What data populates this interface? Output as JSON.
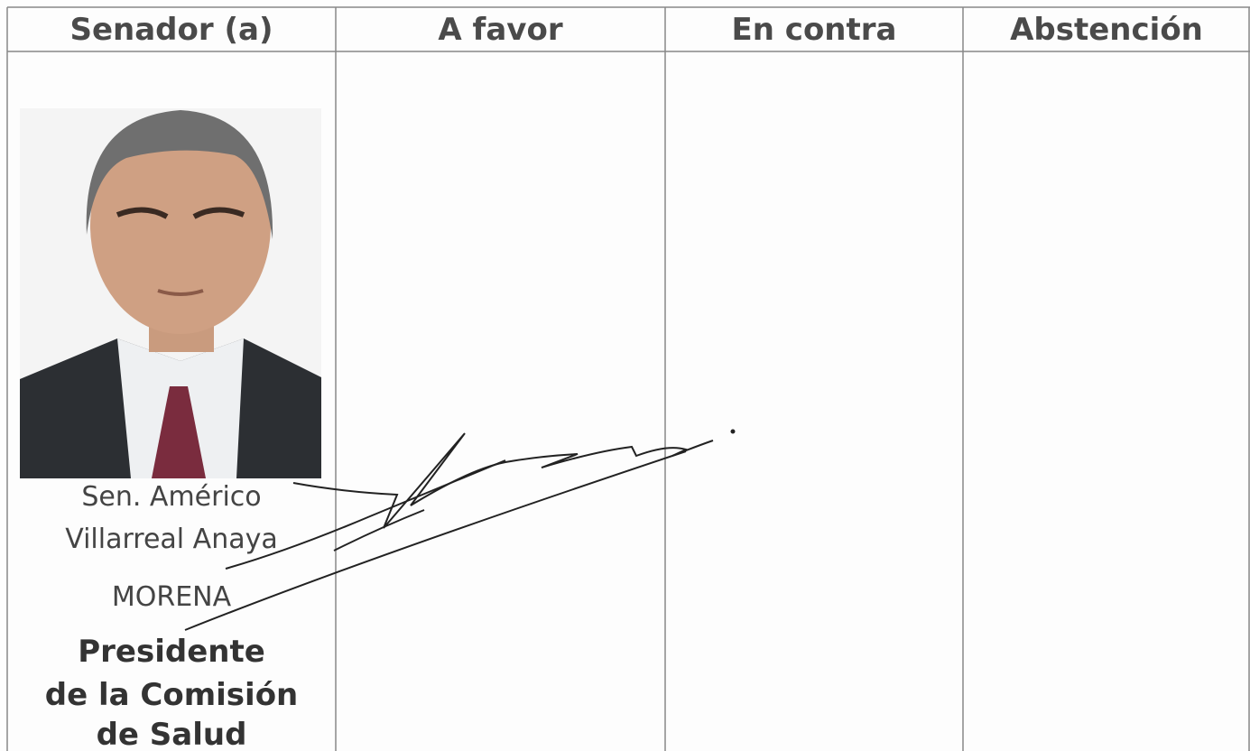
{
  "table": {
    "header": [
      "Senador (a)",
      "A favor",
      "En contra",
      "Abstención"
    ],
    "senator": {
      "name_lines": [
        "Sen. Américo",
        "Villarreal Anaya"
      ],
      "party": "MORENA",
      "role_lines": [
        "Presidente",
        "de la Comisión",
        "de Salud"
      ]
    }
  }
}
